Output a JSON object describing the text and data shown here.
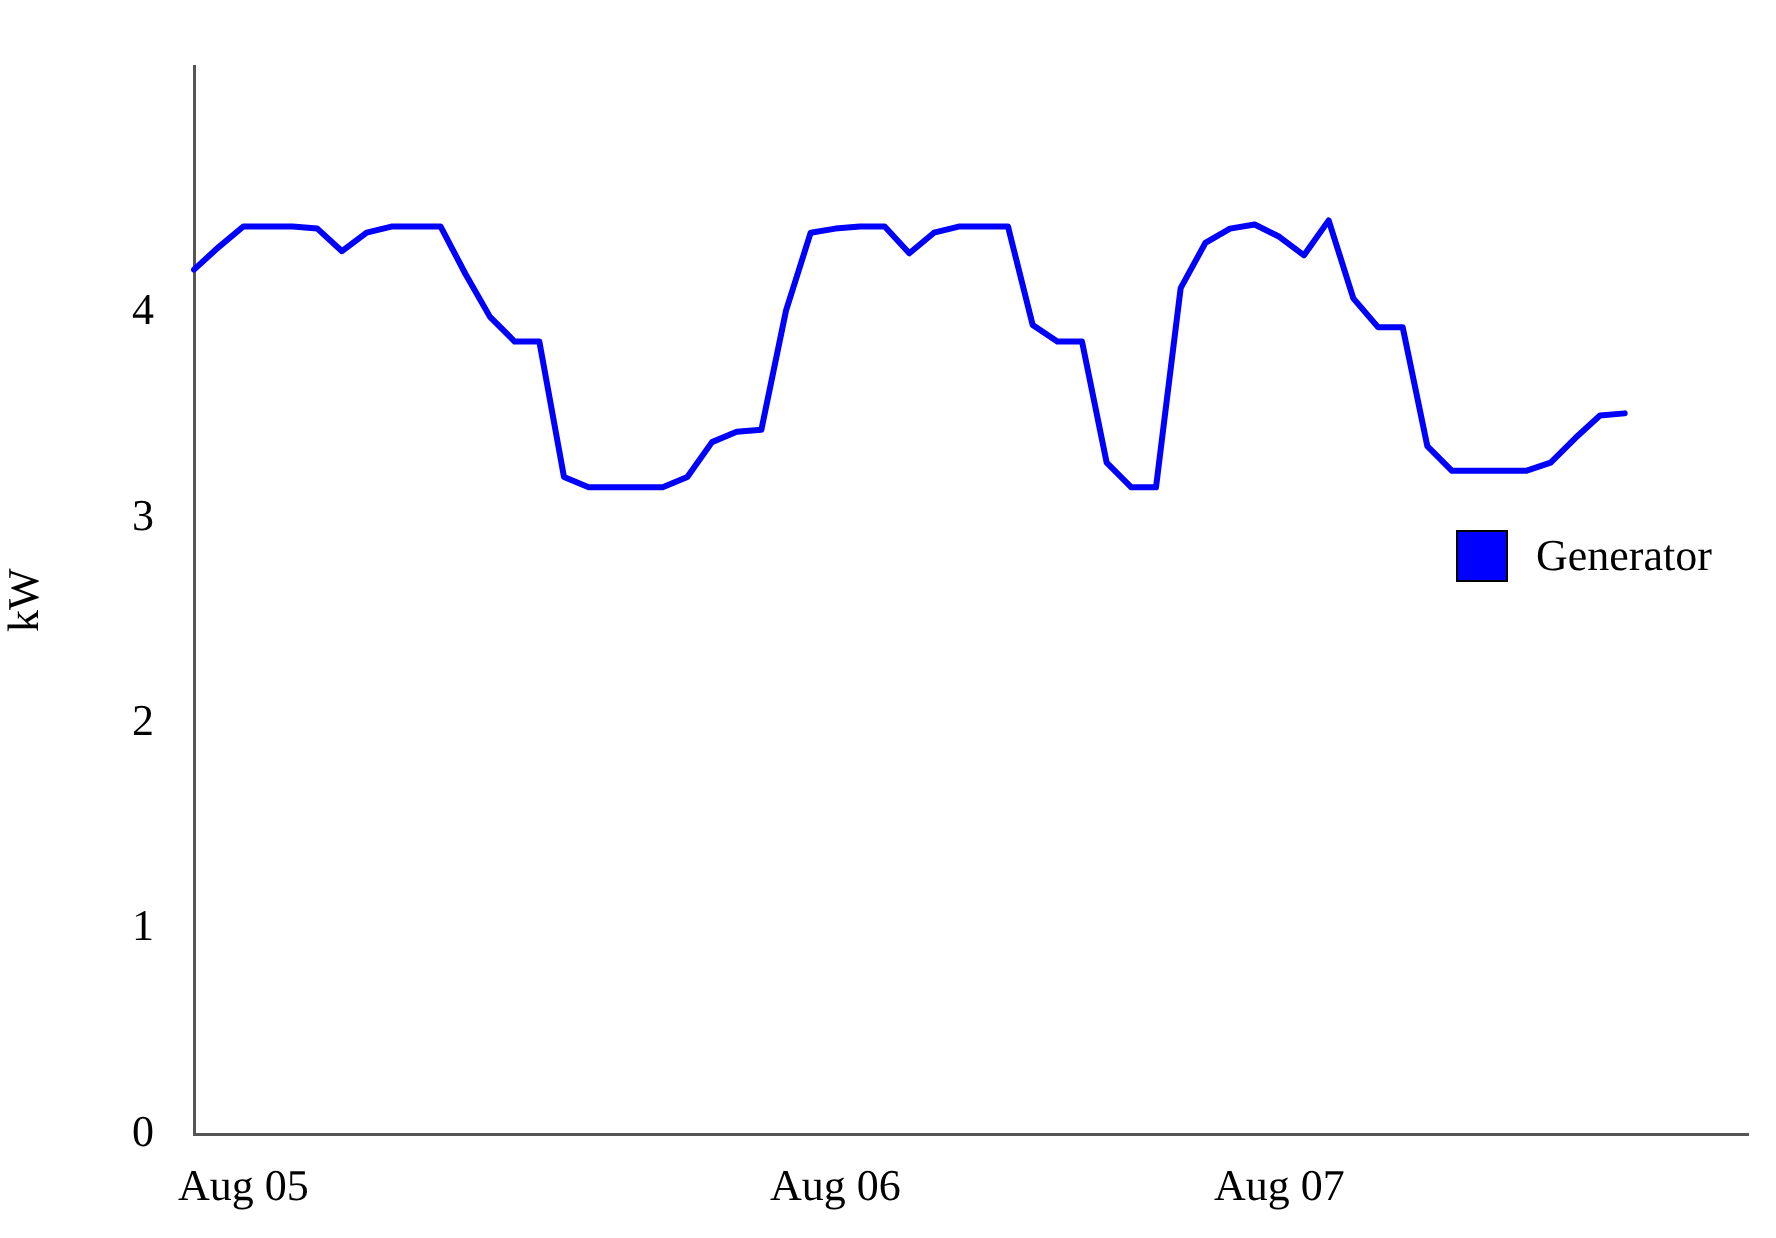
{
  "chart_data": {
    "type": "line",
    "ylabel": "kW",
    "categories": [
      null,
      null,
      "Aug 05",
      null,
      null,
      null,
      null,
      null,
      null,
      null,
      null,
      null,
      null,
      null,
      null,
      null,
      null,
      null,
      null,
      null,
      null,
      null,
      null,
      null,
      null,
      null,
      "Aug 06",
      null,
      null,
      null,
      null,
      null,
      null,
      null,
      null,
      null,
      null,
      null,
      null,
      null,
      null,
      null,
      null,
      null,
      "Aug 07",
      null,
      null,
      null,
      null,
      null,
      null,
      null,
      null,
      null,
      null,
      null,
      null,
      null,
      null,
      null,
      null,
      null,
      null,
      null
    ],
    "ylim": [
      0,
      5.2
    ],
    "yticks": [
      0,
      1,
      2,
      3,
      4
    ],
    "grid": false,
    "legend": "right",
    "marker": "none",
    "line_style": "solid",
    "series": [
      {
        "name": "Generator",
        "color": "#0000ff",
        "values": [
          4.21,
          4.32,
          4.42,
          4.42,
          4.42,
          4.41,
          4.3,
          4.39,
          4.42,
          4.42,
          4.42,
          4.19,
          3.98,
          3.86,
          3.86,
          3.2,
          3.15,
          3.15,
          3.15,
          3.15,
          3.2,
          3.37,
          3.42,
          3.43,
          4.01,
          4.39,
          4.41,
          4.42,
          4.42,
          4.29,
          4.39,
          4.42,
          4.42,
          4.42,
          3.94,
          3.86,
          3.86,
          3.27,
          3.15,
          3.15,
          4.12,
          4.34,
          4.41,
          4.43,
          4.37,
          4.28,
          4.45,
          4.07,
          3.93,
          3.93,
          3.35,
          3.23,
          3.23,
          3.23,
          3.23,
          3.27,
          3.39,
          3.5,
          3.51,
          null,
          null,
          null,
          null,
          null
        ]
      }
    ]
  }
}
